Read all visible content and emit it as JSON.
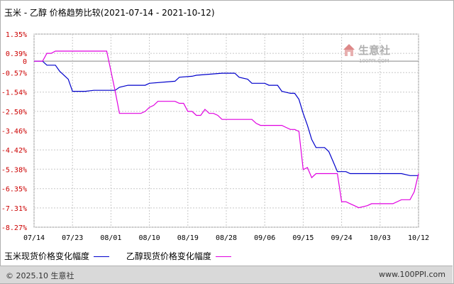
{
  "title": "玉米 - 乙醇 价格趋势比较(2021-07-14 - 2021-10-12)",
  "footer": {
    "copyright": "© 2025.10 生意社",
    "url": "www.100PPI.com"
  },
  "logo": {
    "name": "生意社",
    "url": "100PPI.COM"
  },
  "colors": {
    "corn": "#0000cc",
    "ethanol": "#e000e0",
    "ytick": "#cc0000",
    "zero_line": "#888888"
  },
  "chart_data": {
    "type": "line",
    "title": "玉米 - 乙醇 价格趋势比较(2021-07-14 - 2021-10-12)",
    "xlabel": "",
    "ylabel": "",
    "y_unit": "%",
    "ylim": [
      -8.27,
      1.35
    ],
    "y_ticks": [
      "1.35%",
      "0.39%",
      "0",
      "-0.57%",
      "-1.54%",
      "-2.50%",
      "-3.46%",
      "-4.42%",
      "-5.38%",
      "-6.35%",
      "-7.31%",
      "-8.27%"
    ],
    "y_tick_values": [
      1.35,
      0.39,
      0,
      -0.57,
      -1.54,
      -2.5,
      -3.46,
      -4.42,
      -5.38,
      -6.35,
      -7.31,
      -8.27
    ],
    "x_ticks": [
      "07/14",
      "07/23",
      "08/01",
      "08/10",
      "08/19",
      "08/28",
      "09/06",
      "09/15",
      "09/24",
      "10/03",
      "10/12"
    ],
    "x_tick_days": [
      0,
      9,
      18,
      27,
      36,
      45,
      54,
      63,
      72,
      81,
      90
    ],
    "grid": true,
    "legend_position": "bottom",
    "series": [
      {
        "name": "玉米现货价格变化幅度",
        "color": "#0000cc",
        "x": [
          0,
          2,
          3,
          5,
          6,
          8,
          9,
          12,
          14,
          18,
          19,
          20,
          22,
          26,
          27,
          33,
          34,
          37,
          38,
          44,
          45,
          47,
          48,
          50,
          51,
          54,
          55,
          57,
          58,
          60,
          61,
          62,
          63,
          64,
          65,
          66,
          67,
          68,
          69,
          70,
          71,
          72,
          73,
          74,
          75,
          80,
          85,
          86,
          88,
          90
        ],
        "y": [
          0,
          0,
          -0.2,
          -0.2,
          -0.5,
          -0.9,
          -1.5,
          -1.5,
          -1.45,
          -1.45,
          -1.45,
          -1.3,
          -1.2,
          -1.2,
          -1.1,
          -1.0,
          -0.8,
          -0.75,
          -0.7,
          -0.6,
          -0.6,
          -0.6,
          -0.8,
          -0.9,
          -1.1,
          -1.1,
          -1.2,
          -1.2,
          -1.5,
          -1.6,
          -1.6,
          -1.9,
          -2.6,
          -3.2,
          -3.9,
          -4.3,
          -4.3,
          -4.3,
          -4.5,
          -5.0,
          -5.5,
          -5.5,
          -5.5,
          -5.6,
          -5.6,
          -5.6,
          -5.6,
          -5.6,
          -5.7,
          -5.7
        ]
      },
      {
        "name": "乙醇现货价格变化幅度",
        "color": "#e000e0",
        "x": [
          0,
          2,
          3,
          4,
          5,
          17,
          18,
          19,
          20,
          21,
          25,
          26,
          27,
          28,
          29,
          33,
          34,
          35,
          36,
          37,
          38,
          39,
          40,
          41,
          42,
          43,
          44,
          46,
          47,
          49,
          51,
          52,
          53,
          54,
          55,
          56,
          57,
          58,
          59,
          60,
          61,
          62,
          63,
          64,
          65,
          66,
          67,
          69,
          70,
          71,
          72,
          73,
          74,
          75,
          76,
          78,
          79,
          83,
          84,
          86,
          87,
          88,
          89,
          90
        ],
        "y": [
          0,
          0,
          0.39,
          0.39,
          0.5,
          0.5,
          -0.5,
          -1.5,
          -2.6,
          -2.6,
          -2.6,
          -2.5,
          -2.3,
          -2.2,
          -2.0,
          -2.0,
          -2.1,
          -2.1,
          -2.5,
          -2.5,
          -2.7,
          -2.7,
          -2.4,
          -2.6,
          -2.6,
          -2.7,
          -2.9,
          -2.9,
          -2.9,
          -2.9,
          -2.9,
          -3.1,
          -3.2,
          -3.2,
          -3.2,
          -3.2,
          -3.2,
          -3.2,
          -3.3,
          -3.4,
          -3.4,
          -3.5,
          -5.4,
          -5.3,
          -5.8,
          -5.6,
          -5.6,
          -5.6,
          -5.6,
          -5.6,
          -7.0,
          -7.0,
          -7.1,
          -7.2,
          -7.3,
          -7.2,
          -7.1,
          -7.1,
          -7.1,
          -6.9,
          -6.9,
          -6.9,
          -6.5,
          -5.6
        ]
      }
    ]
  }
}
